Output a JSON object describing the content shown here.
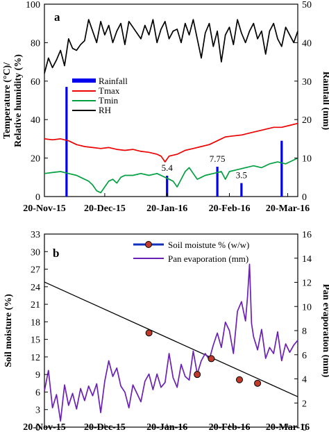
{
  "chart_data": [
    {
      "id": "a",
      "type": "line",
      "panel_label": "a",
      "ylabel_left": "Temperature  (°C)/\nRelative humidity  (%)",
      "ylabel_right": "Rainfall  (mm)",
      "ylim_left": [
        0,
        100
      ],
      "yticks_left": [
        "0",
        "20",
        "40",
        "60",
        "80",
        "100"
      ],
      "ylim_right": [
        0,
        50
      ],
      "yticks_right": [
        "0",
        "10",
        "20",
        "30",
        "40",
        "50"
      ],
      "x_range_days": [
        0,
        126
      ],
      "x_tick_labels": [
        "20-Nov-15",
        "20-Dec-15",
        "20-Jan-16",
        "20-Feb-16",
        "20-Mar-16"
      ],
      "x_tick_days": [
        0,
        30,
        61,
        92,
        121
      ],
      "legend": [
        "Rainfall",
        "Tmax",
        "Tmin",
        "RH"
      ],
      "legend_position": "center-left",
      "colors": {
        "Rainfall": "#0000ee",
        "Tmax": "#ee0000",
        "Tmin": "#00a040",
        "RH": "#000000"
      },
      "rainfall_events": [
        {
          "day": 11,
          "value": 28.5,
          "label": ""
        },
        {
          "day": 61,
          "value": 5.4,
          "label": "5.4"
        },
        {
          "day": 86,
          "value": 7.75,
          "label": "7.75"
        },
        {
          "day": 98,
          "value": 3.5,
          "label": "3.5"
        },
        {
          "day": 118,
          "value": 14.5,
          "label": ""
        }
      ],
      "series": [
        {
          "name": "RH",
          "axis": "left",
          "x": [
            0,
            2,
            4,
            6,
            8,
            10,
            12,
            14,
            16,
            18,
            20,
            22,
            24,
            26,
            28,
            30,
            32,
            34,
            36,
            38,
            40,
            42,
            44,
            46,
            48,
            50,
            52,
            54,
            56,
            58,
            60,
            62,
            64,
            66,
            68,
            70,
            72,
            74,
            76,
            78,
            80,
            82,
            84,
            86,
            88,
            90,
            92,
            94,
            96,
            98,
            100,
            102,
            104,
            106,
            108,
            110,
            112,
            114,
            116,
            118,
            120,
            122,
            124,
            126
          ],
          "y": [
            64,
            72,
            67,
            71,
            76,
            68,
            82,
            77,
            76,
            79,
            81,
            92,
            86,
            80,
            91,
            84,
            89,
            80,
            86,
            90,
            79,
            91,
            88,
            85,
            82,
            89,
            84,
            92,
            80,
            87,
            91,
            82,
            86,
            87,
            80,
            90,
            84,
            92,
            82,
            72,
            85,
            90,
            78,
            86,
            70,
            84,
            88,
            79,
            92,
            85,
            80,
            86,
            90,
            82,
            86,
            74,
            86,
            90,
            82,
            78,
            88,
            84,
            80,
            86
          ]
        },
        {
          "name": "Tmax",
          "axis": "left",
          "x": [
            0,
            4,
            8,
            12,
            16,
            20,
            24,
            28,
            32,
            36,
            40,
            44,
            48,
            52,
            56,
            58,
            60,
            62,
            66,
            70,
            74,
            78,
            82,
            86,
            90,
            94,
            98,
            102,
            106,
            110,
            114,
            118,
            122,
            126
          ],
          "y": [
            30,
            29.5,
            30,
            29,
            27,
            26,
            25.5,
            25,
            25.5,
            24.5,
            24,
            24.5,
            23.5,
            23,
            22,
            21,
            18,
            21,
            22,
            24,
            25,
            26,
            27,
            29,
            31,
            31.5,
            32,
            33,
            34,
            35,
            36,
            36,
            37,
            38
          ]
        },
        {
          "name": "Tmin",
          "axis": "left",
          "x": [
            0,
            4,
            8,
            12,
            16,
            18,
            20,
            22,
            24,
            26,
            28,
            30,
            32,
            34,
            36,
            38,
            40,
            44,
            48,
            52,
            56,
            60,
            64,
            66,
            68,
            70,
            72,
            74,
            76,
            78,
            80,
            84,
            88,
            90,
            92,
            96,
            100,
            104,
            108,
            112,
            116,
            120,
            124,
            126
          ],
          "y": [
            12,
            12.5,
            13,
            12,
            11,
            10,
            9,
            8,
            6,
            3,
            2,
            5,
            8,
            9,
            7,
            10,
            11,
            11,
            12,
            11,
            12,
            10,
            8,
            5,
            9,
            13,
            15,
            12,
            9,
            10,
            11,
            12,
            13,
            9,
            13,
            14,
            15,
            16,
            15,
            17,
            18,
            17,
            19,
            20
          ]
        }
      ]
    },
    {
      "id": "b",
      "type": "line",
      "panel_label": "b",
      "ylabel_left": "Soil moisture  (%)",
      "ylabel_right": "Pan  evaporation  (mm)",
      "ylim_left": [
        0,
        33
      ],
      "yticks_left": [
        "0",
        "3",
        "6",
        "9",
        "12",
        "15",
        "18",
        "21",
        "24",
        "27",
        "30",
        "33"
      ],
      "ylim_right": [
        0,
        16
      ],
      "yticks_right": [
        "0",
        "2",
        "4",
        "6",
        "8",
        "10",
        "12",
        "14",
        "16"
      ],
      "x_range_days": [
        0,
        126
      ],
      "x_tick_labels": [
        "20-Nov-15",
        "20-Dec-15",
        "20-Jan-16",
        "20-Feb-16",
        "20-Mar-16"
      ],
      "x_tick_days": [
        0,
        30,
        61,
        92,
        121
      ],
      "legend": [
        "Soil moistute % (w/w)",
        "Pan evaporation (mm)"
      ],
      "legend_position": "top-center",
      "colors": {
        "Soil moisture": "#c0392b",
        "Soil trend": "#000000",
        "Pan evaporation": "#6a1fb5"
      },
      "soil_moisture": {
        "name": "Soil moistute % (w/w)",
        "x": [
          52,
          76,
          83,
          97,
          106
        ],
        "y": [
          16.1,
          9.0,
          11.7,
          8.1,
          7.5
        ]
      },
      "soil_trend": {
        "x": [
          0,
          126
        ],
        "y": [
          24.8,
          5.2
        ]
      },
      "series": [
        {
          "name": "Pan evaporation (mm)",
          "axis": "right",
          "x": [
            0,
            2,
            4,
            6,
            8,
            10,
            12,
            14,
            16,
            18,
            20,
            22,
            24,
            26,
            28,
            30,
            32,
            34,
            36,
            38,
            40,
            42,
            44,
            46,
            48,
            50,
            52,
            54,
            56,
            58,
            60,
            62,
            64,
            66,
            68,
            70,
            72,
            74,
            76,
            78,
            80,
            82,
            84,
            86,
            88,
            90,
            92,
            94,
            96,
            98,
            100,
            101,
            102,
            103,
            104,
            106,
            108,
            110,
            112,
            114,
            116,
            118,
            120,
            122,
            124,
            126
          ],
          "y": [
            3,
            4.7,
            1.6,
            2.7,
            0.5,
            3.5,
            1.8,
            2.8,
            1.5,
            3.2,
            2.2,
            3.4,
            2.6,
            3.6,
            1.2,
            3.8,
            5.5,
            4.2,
            4.9,
            3.4,
            2.9,
            1.6,
            3.5,
            2.8,
            2.1,
            3.8,
            4.4,
            3.1,
            4.4,
            3.3,
            3.7,
            6.1,
            4.1,
            3.3,
            5.2,
            4.2,
            3.9,
            6.3,
            4.4,
            5.5,
            6.1,
            5.6,
            6.8,
            7.8,
            6.6,
            8.7,
            8.0,
            6.1,
            9.6,
            10.4,
            8.8,
            10.8,
            13.5,
            8.6,
            7.5,
            6.4,
            8.1,
            5.7,
            6.6,
            6.1,
            7.9,
            5.5,
            6.9,
            6.2,
            6.8,
            7.2
          ]
        }
      ]
    }
  ]
}
